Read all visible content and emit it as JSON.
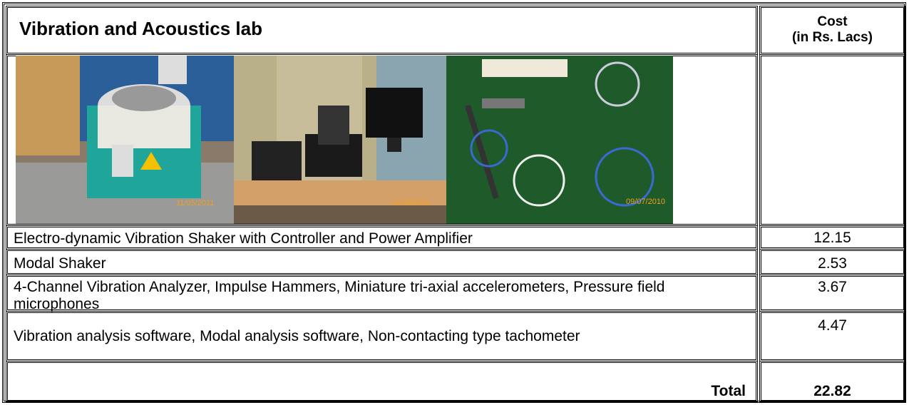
{
  "table": {
    "header": {
      "title": "Vibration and Acoustics lab",
      "cost_header": [
        "Cost",
        "(in Rs. Lacs)"
      ]
    },
    "photos": [
      {
        "date": "11/05/2011"
      },
      {
        "date": "11/05/2011"
      },
      {
        "date": "09/07/2010"
      }
    ],
    "rows": [
      {
        "item": "Electro-dynamic Vibration Shaker with Controller and Power Amplifier",
        "cost": 12.15
      },
      {
        "item": "Modal Shaker",
        "cost": 2.53
      },
      {
        "item": "4-Channel Vibration Analyzer, Impulse Hammers, Miniature tri-axial accelerometers, Pressure field microphones",
        "cost": 3.67
      },
      {
        "item": "Vibration analysis software, Modal analysis software, Non-contacting type tachometer",
        "cost": 4.47
      }
    ],
    "total": {
      "label": "Total",
      "cost": 22.82
    }
  }
}
